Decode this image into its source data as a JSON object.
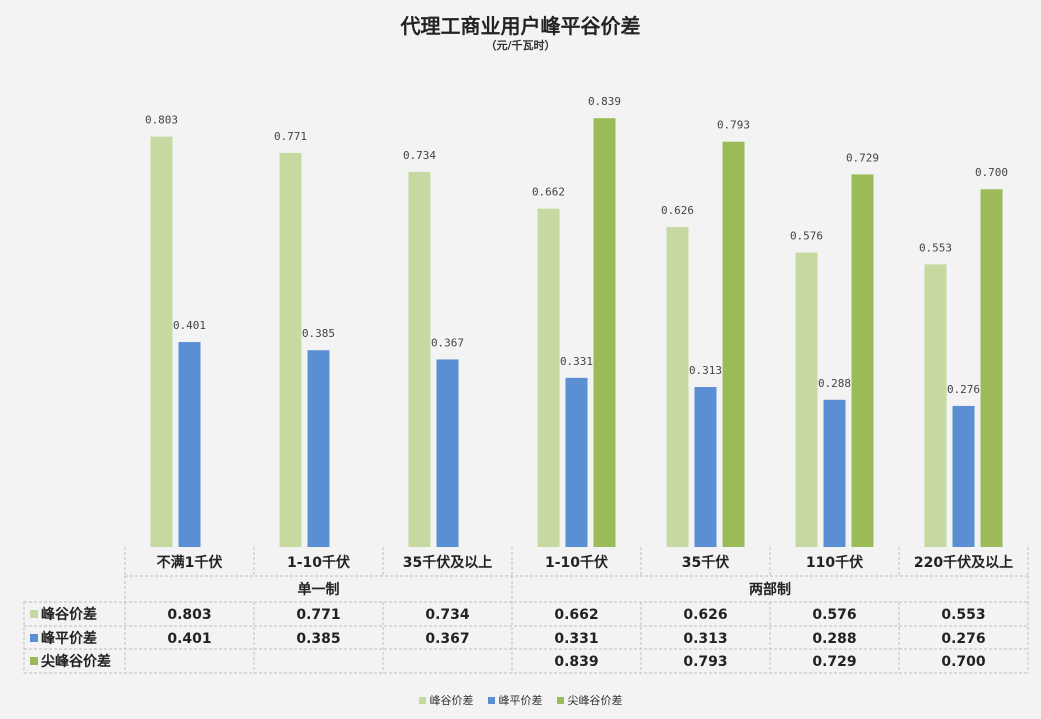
{
  "chart_data": {
    "type": "bar",
    "title": "代理工商业用户峰平谷价差",
    "subtitle": "（元/千瓦时）",
    "groups": [
      {
        "label": "单一制",
        "categories": [
          "不满1千伏",
          "1-10千伏",
          "35千伏及以上"
        ]
      },
      {
        "label": "两部制",
        "categories": [
          "1-10千伏",
          "35千伏",
          "110千伏",
          "220千伏及以上"
        ]
      }
    ],
    "categories": [
      "不满1千伏",
      "1-10千伏",
      "35千伏及以上",
      "1-10千伏",
      "35千伏",
      "110千伏",
      "220千伏及以上"
    ],
    "series": [
      {
        "name": "峰谷价差",
        "color": "#c5d9a0",
        "values": [
          0.803,
          0.771,
          0.734,
          0.662,
          0.626,
          0.576,
          0.553
        ],
        "labels": [
          "0.803",
          "0.771",
          "0.734",
          "0.662",
          "0.626",
          "0.576",
          "0.553"
        ]
      },
      {
        "name": "峰平价差",
        "color": "#5b8fd4",
        "values": [
          0.401,
          0.385,
          0.367,
          0.331,
          0.313,
          0.288,
          0.276
        ],
        "labels": [
          "0.401",
          "0.385",
          "0.367",
          "0.331",
          "0.313",
          "0.288",
          "0.276"
        ]
      },
      {
        "name": "尖峰谷价差",
        "color": "#9bbb59",
        "values": [
          null,
          null,
          null,
          0.839,
          0.793,
          0.729,
          0.7
        ],
        "labels": [
          "",
          "",
          "",
          "0.839",
          "0.793",
          "0.729",
          "0.700"
        ]
      }
    ],
    "ylim": [
      0,
      0.9
    ],
    "grid": false,
    "legend_position": "bottom"
  }
}
